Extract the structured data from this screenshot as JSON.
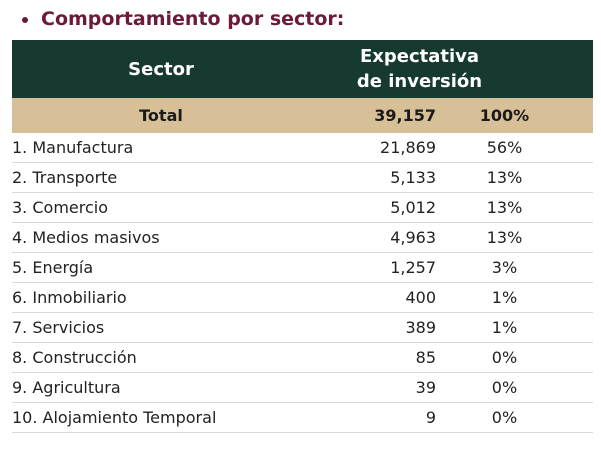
{
  "heading": "Comportamiento por sector:",
  "table": {
    "header": {
      "sector": "Sector",
      "expectativa_line1": "Expectativa",
      "expectativa_line2": "de inversión"
    },
    "total": {
      "label": "Total",
      "value": "39,157",
      "percent": "100%"
    },
    "rows": [
      {
        "sector": "1. Manufactura",
        "value": "21,869",
        "percent": "56%"
      },
      {
        "sector": "2. Transporte",
        "value": "5,133",
        "percent": "13%"
      },
      {
        "sector": "3. Comercio",
        "value": "5,012",
        "percent": "13%"
      },
      {
        "sector": "4. Medios masivos",
        "value": "4,963",
        "percent": "13%"
      },
      {
        "sector": "5. Energía",
        "value": "1,257",
        "percent": "3%"
      },
      {
        "sector": "6. Inmobiliario",
        "value": "400",
        "percent": "1%"
      },
      {
        "sector": "7. Servicios",
        "value": "389",
        "percent": "1%"
      },
      {
        "sector": "8. Construcción",
        "value": "85",
        "percent": "0%"
      },
      {
        "sector": "9. Agricultura",
        "value": "39",
        "percent": "0%"
      },
      {
        "sector": "10. Alojamiento Temporal",
        "value": "9",
        "percent": "0%"
      }
    ]
  },
  "colors": {
    "heading": "#6b1a3c",
    "header_bg": "#163a2f",
    "total_bg": "#d7bf98",
    "row_divider": "#d9d9d9"
  }
}
